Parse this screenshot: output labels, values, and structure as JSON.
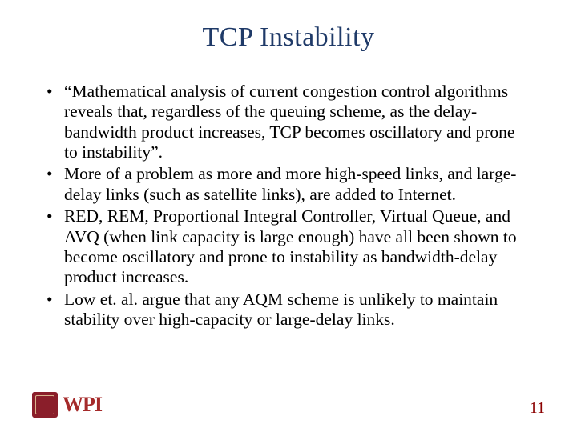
{
  "title": {
    "text": "TCP Instability",
    "color": "#1f3a68",
    "fontsize": 34
  },
  "bullets": [
    "“Mathematical analysis of current congestion control algorithms reveals that, regardless of the queuing scheme, as the delay-bandwidth product increases, TCP becomes oscillatory and prone to instability”.",
    "More of a problem as more and more high-speed links, and large-delay links (such as satellite links), are added to Internet.",
    "RED, REM, Proportional Integral Controller, Virtual Queue, and AVQ (when link capacity is large enough) have all been shown to become oscillatory and prone to instability as bandwidth-delay product increases.",
    "Low et. al. argue that any AQM scheme is unlikely to maintain stability over high-capacity or large-delay links."
  ],
  "body_text_color": "#000000",
  "body_fontsize": 21.5,
  "bullet_marker": "•",
  "logo": {
    "seal_color": "#8a1e2a",
    "text": "WPI",
    "text_color": "#a52a2a"
  },
  "page_number": {
    "value": "11",
    "color": "#8b0000"
  },
  "background_color": "#ffffff"
}
